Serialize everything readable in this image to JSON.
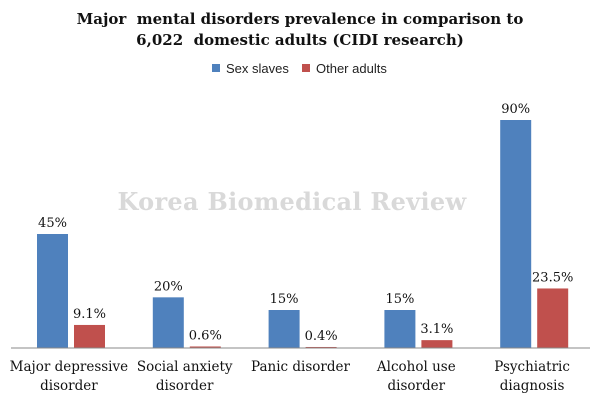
{
  "chart_data": {
    "type": "bar",
    "title": [
      "Major  mental disorders prevalence in comparison to",
      "6,022  domestic adults (CIDI research)"
    ],
    "categories": [
      [
        "Major depressive",
        "disorder"
      ],
      [
        "Social anxiety",
        "disorder"
      ],
      [
        "Panic disorder"
      ],
      [
        "Alcohol use",
        "disorder"
      ],
      [
        "Psychiatric",
        "diagnosis"
      ]
    ],
    "series": [
      {
        "name": "Sex slaves",
        "color": "#4F81BD",
        "values": [
          45,
          20,
          15,
          15,
          90
        ],
        "labels": [
          "45%",
          "20%",
          "15%",
          "15%",
          "90%"
        ]
      },
      {
        "name": "Other adults",
        "color": "#C0504D",
        "values": [
          9.1,
          0.6,
          0.4,
          3.1,
          23.5
        ],
        "labels": [
          "9.1%",
          "0.6%",
          "0.4%",
          "3.1%",
          "23.5%"
        ]
      }
    ],
    "ylim": [
      0,
      100
    ],
    "legend": "top-center",
    "grid": false
  },
  "watermark": "Korea Biomedical Review"
}
